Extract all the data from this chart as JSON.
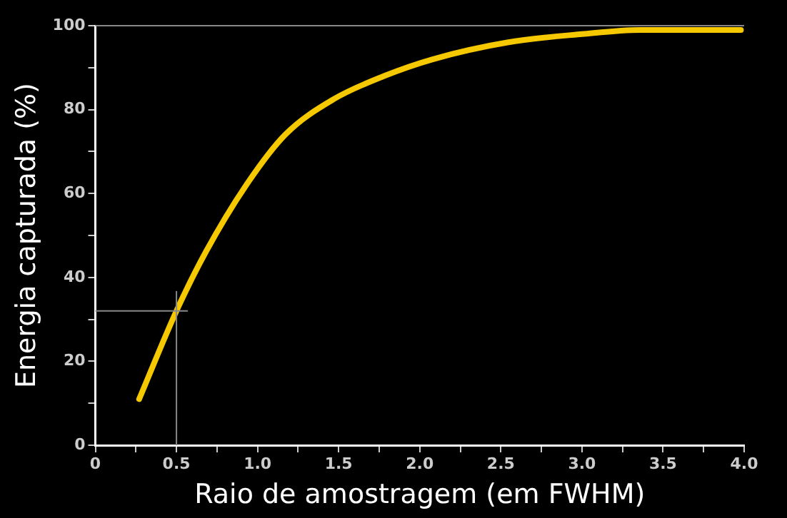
{
  "chart_data": {
    "type": "line",
    "xlabel": "Raio de amostragem (em FWHM)",
    "ylabel": "Energia capturada (%)",
    "x": [
      0.27,
      0.5,
      0.68,
      0.93,
      1.17,
      1.47,
      1.78,
      2.08,
      2.54,
      3.0,
      3.36,
      3.98
    ],
    "series": [
      {
        "color": "#f5c800",
        "values": [
          11,
          32,
          46,
          62,
          74,
          82.5,
          88,
          92,
          96,
          98,
          99,
          99
        ]
      }
    ],
    "xlim": [
      0,
      4
    ],
    "xticks": [
      0,
      {
        "value": 0.25,
        "label": null
      },
      0.5,
      {
        "value": 0.75,
        "label": null
      },
      "1.0",
      {
        "value": 1.25,
        "label": null
      },
      1.5,
      {
        "value": 1.75,
        "label": null
      },
      "2.0",
      {
        "value": 2.25,
        "label": null
      },
      2.5,
      {
        "value": 2.75,
        "label": null
      },
      "3.0",
      {
        "value": 3.25,
        "label": null
      },
      3.5,
      {
        "value": 3.75,
        "label": null
      },
      "4.0"
    ],
    "ylim": [
      0,
      100
    ],
    "yticks": [
      0,
      {
        "value": 10,
        "label": null
      },
      20,
      {
        "value": 30,
        "label": null
      },
      40,
      {
        "value": 50,
        "label": null
      },
      60,
      {
        "value": 70,
        "label": null
      },
      80,
      {
        "value": 90,
        "label": null
      },
      100
    ],
    "ref_lines": [
      {
        "axis": "y",
        "value": 100,
        "color": "#888888"
      },
      {
        "axis": "y",
        "value": 32,
        "color": "#888888"
      },
      {
        "axis": "x",
        "value": 0.5,
        "color": "#888888"
      }
    ],
    "legend": false,
    "marker": "none",
    "line_style": "solid"
  }
}
